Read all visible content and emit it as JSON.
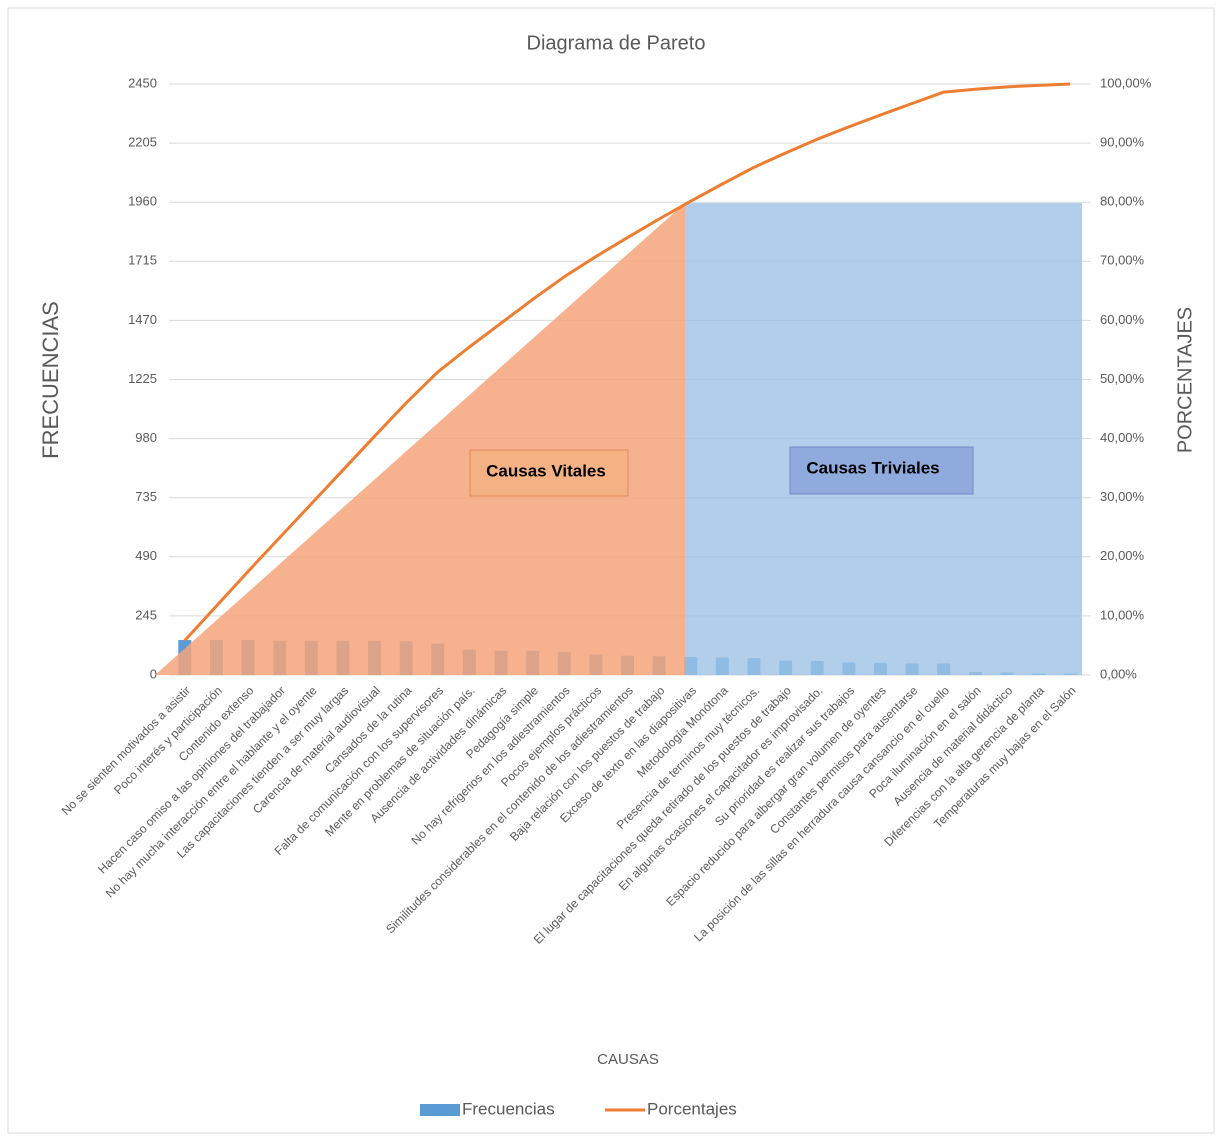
{
  "chart_data": {
    "type": "bar",
    "title": "Diagrama de Pareto",
    "x_label": "CAUSAS",
    "y_label": "FRECUENCIAS",
    "y2_label": "PORCENTAJES",
    "annotations": [
      "Causas Vitales",
      "Causas Triviales"
    ],
    "categories": [
      "No se sienten motivados a asistir",
      "Poco interés y participación",
      "Contenido extenso",
      "Hacen caso omiso a las opiniones del trabajador",
      "No hay mucha interacción entre el hablante y el oyente",
      "Las capacitaciones tienden a ser muy largas",
      "Carencia de material audiovisual",
      "Cansados de la rutina",
      "Falta de comunicación con los supervisores",
      "Mente en problemas de situación país.",
      "Ausencia de actividades dinámicas",
      "Pedagogía simple",
      "No hay refrigerios en los adiestramientos",
      "Pocos ejemplos prácticos",
      "Similitudes considerables en el contenido de los adiestramientos",
      "Baja relación con los puestos de trabajo",
      "Exceso de texto en las diapositivas",
      "Metodología Monótona",
      "Presencia de terminos muy técnicos.",
      "El lugar de capacitaciones queda retirado de los puestos de trabajo",
      "En algunas ocasiones el capacitador es improvisado.",
      "Su prioridad es realizar sus trabajos",
      "Espacio reducido para albergar gran volumen de oyentes",
      "Constantes permisos para ausentarse",
      "La posición de las sillas en herradura causa cansancio en el cuello",
      "Poca iluminación en el salón",
      "Ausencia de material didáctico",
      "Diferencias con la alta gerencia de planta",
      "Temperaturas muy bajas en el Salón"
    ],
    "series": [
      {
        "name": "Frecuencias",
        "type": "bar",
        "color": "#5b9bd5",
        "values": [
          145,
          145,
          145,
          142,
          142,
          142,
          142,
          140,
          130,
          105,
          100,
          100,
          95,
          85,
          80,
          78,
          75,
          72,
          70,
          60,
          58,
          52,
          50,
          48,
          48,
          12,
          10,
          6,
          6
        ]
      },
      {
        "name": "Porcentajes",
        "type": "line",
        "axis": "y2",
        "color": "#ed7d31",
        "values": [
          5.84,
          11.68,
          17.52,
          23.24,
          28.96,
          34.68,
          40.39,
          46.03,
          51.27,
          55.5,
          59.52,
          63.55,
          67.38,
          70.8,
          74.02,
          77.16,
          80.18,
          83.08,
          85.9,
          88.32,
          90.66,
          92.75,
          94.76,
          96.7,
          98.63,
          99.11,
          99.52,
          99.76,
          100
        ]
      }
    ],
    "ylim": [
      0,
      2450
    ],
    "yticks": [
      0,
      245,
      490,
      735,
      980,
      1225,
      1470,
      1715,
      1960,
      2205,
      2450
    ],
    "y2lim": [
      0,
      100
    ],
    "y2ticks": [
      {
        "value": 0,
        "label": "0,00%"
      },
      {
        "value": 10,
        "label": "10,00%"
      },
      {
        "value": 20,
        "label": "20,00%"
      },
      {
        "value": 30,
        "label": "30,00%"
      },
      {
        "value": 40,
        "label": "40,00%"
      },
      {
        "value": 50,
        "label": "50,00%"
      },
      {
        "value": 60,
        "label": "60,00%"
      },
      {
        "value": 70,
        "label": "70,00%"
      },
      {
        "value": 80,
        "label": "80,00%"
      },
      {
        "value": 90,
        "label": "90,00%"
      },
      {
        "value": 100,
        "label": "100,00%"
      }
    ],
    "grid": true,
    "legend": "bottom"
  }
}
